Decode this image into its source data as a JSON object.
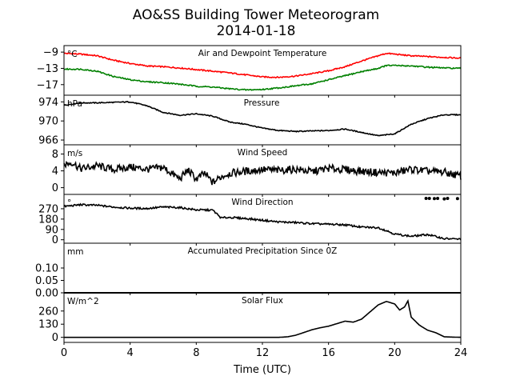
{
  "title": "AO&SS Building Tower Meteorogram",
  "subtitle": "2014-01-18",
  "colors": {
    "temperature": "#ff0000",
    "dewpoint": "#008000",
    "default": "#000000"
  },
  "chart_data": [
    {
      "type": "line",
      "title": "Air and Dewpoint Temperature",
      "ylabel": "°C",
      "ylim": [
        -19.6,
        -7.4
      ],
      "yticks": [
        -9,
        -13,
        -17
      ],
      "ytick_labels": [
        "−9",
        "−13",
        "−17"
      ],
      "x": [
        0,
        1,
        2,
        3,
        4,
        5,
        6,
        7,
        8,
        9,
        10,
        11,
        12,
        13,
        14,
        15,
        16,
        17,
        18,
        19,
        19.5,
        20,
        21,
        22,
        23,
        24
      ],
      "series": [
        {
          "color": "#ff0000",
          "values": [
            -9.3,
            -9.5,
            -9.9,
            -11.0,
            -11.8,
            -12.4,
            -12.6,
            -12.9,
            -13.3,
            -13.7,
            -14.1,
            -14.6,
            -15.1,
            -15.2,
            -14.9,
            -14.3,
            -13.6,
            -12.6,
            -11.2,
            -9.9,
            -9.3,
            -9.5,
            -9.9,
            -10.1,
            -10.3,
            -10.5
          ]
        },
        {
          "color": "#008000",
          "values": [
            -13.2,
            -13.2,
            -13.7,
            -15.0,
            -15.8,
            -16.3,
            -16.5,
            -16.9,
            -17.4,
            -17.6,
            -18.0,
            -18.3,
            -18.2,
            -17.8,
            -17.3,
            -16.8,
            -15.8,
            -14.8,
            -13.8,
            -13.0,
            -12.3,
            -12.3,
            -12.4,
            -12.7,
            -12.9,
            -13.0
          ]
        }
      ]
    },
    {
      "type": "line",
      "title": "Pressure",
      "ylabel": "hPa",
      "ylim": [
        965,
        975.4
      ],
      "yticks": [
        974,
        970,
        966
      ],
      "ytick_labels": [
        "974",
        "970",
        "966"
      ],
      "x": [
        0,
        1,
        2,
        3,
        4,
        5,
        6,
        7,
        8,
        9,
        10,
        11,
        12,
        13,
        14,
        15,
        16,
        17,
        18,
        19,
        20,
        21,
        22,
        23,
        24
      ],
      "series": [
        {
          "color": "#000000",
          "values": [
            973.3,
            973.8,
            973.8,
            973.9,
            974.0,
            973.2,
            971.8,
            971.2,
            971.5,
            971.0,
            969.8,
            969.3,
            968.5,
            968.0,
            967.8,
            967.9,
            968.0,
            968.3,
            967.6,
            966.9,
            967.3,
            969.3,
            970.5,
            971.3,
            971.3
          ]
        }
      ]
    },
    {
      "type": "line",
      "title": "Wind Speed",
      "ylabel": "m/s",
      "ylim": [
        -1.6,
        10.2
      ],
      "yticks": [
        8,
        4,
        0
      ],
      "ytick_labels": [
        "8",
        "4",
        "0"
      ],
      "x": [
        0,
        0.5,
        1,
        2,
        3,
        4,
        5,
        6,
        7,
        7.5,
        8,
        8.5,
        9,
        9.5,
        10,
        11,
        12,
        13,
        14,
        15,
        16,
        17,
        18,
        19,
        20,
        21,
        22,
        23,
        24
      ],
      "series": [
        {
          "color": "#000000",
          "values": [
            5.5,
            6.0,
            4.5,
            5.2,
            4.3,
            4.9,
            4.4,
            4.8,
            2.1,
            4.2,
            2.0,
            3.4,
            1.2,
            2.6,
            3.4,
            3.9,
            4.3,
            4.1,
            4.4,
            3.8,
            4.6,
            4.3,
            3.9,
            3.6,
            3.5,
            4.4,
            3.9,
            3.7,
            2.7
          ]
        }
      ]
    },
    {
      "type": "line",
      "title": "Wind Direction",
      "ylabel": "°",
      "ylim": [
        -30,
        395
      ],
      "yticks": [
        270,
        180,
        90,
        0
      ],
      "ytick_labels": [
        "270",
        "180",
        "90",
        "0"
      ],
      "x": [
        0,
        1,
        2,
        3,
        4,
        5,
        6,
        7,
        8,
        9,
        9.5,
        10,
        11,
        12,
        13,
        14,
        15,
        16,
        17,
        18,
        19,
        19.5,
        20,
        21,
        22,
        23,
        24
      ],
      "series": [
        {
          "color": "#000000",
          "values": [
            290,
            305,
            300,
            285,
            275,
            272,
            285,
            280,
            260,
            258,
            190,
            195,
            185,
            170,
            155,
            150,
            140,
            135,
            130,
            110,
            105,
            80,
            50,
            30,
            45,
            10,
            5
          ]
        }
      ],
      "scatter": [
        {
          "color": "#000000",
          "x": [
            21.9,
            22.1,
            22.4,
            22.6,
            23.0,
            23.2,
            23.8
          ],
          "y": [
            360,
            360,
            358,
            360,
            356,
            360,
            358
          ]
        }
      ]
    },
    {
      "type": "line",
      "title": "Accumulated Precipitation Since 0Z",
      "ylabel": "mm",
      "ylim": [
        0,
        0.2
      ],
      "yticks": [
        0.1,
        0.05,
        0.0
      ],
      "ytick_labels": [
        "0.10",
        "0.05",
        "0.00"
      ],
      "x": [
        0,
        24
      ],
      "series": [
        {
          "color": "#000000",
          "values": [
            0,
            0
          ]
        }
      ]
    },
    {
      "type": "line",
      "title": "Solar Flux",
      "ylabel": "W/m^2",
      "ylim": [
        -50,
        440
      ],
      "yticks": [
        260,
        130,
        0
      ],
      "ytick_labels": [
        "260",
        "130",
        "0"
      ],
      "x": [
        0,
        13,
        13.5,
        14,
        15,
        15.5,
        16,
        16.5,
        17,
        17.5,
        18,
        18.5,
        19,
        19.5,
        20,
        20.3,
        20.6,
        20.8,
        21,
        21.5,
        22,
        22.5,
        23,
        24
      ],
      "series": [
        {
          "color": "#000000",
          "values": [
            0,
            0,
            5,
            20,
            75,
            95,
            110,
            135,
            160,
            150,
            180,
            250,
            320,
            355,
            330,
            270,
            300,
            360,
            200,
            120,
            70,
            45,
            5,
            0
          ]
        }
      ],
      "xlabel": "Time (UTC)",
      "xlim": [
        0,
        24
      ],
      "xticks": [
        0,
        4,
        8,
        12,
        16,
        20,
        24
      ],
      "xtick_labels": [
        "0",
        "4",
        "8",
        "12",
        "16",
        "20",
        "24"
      ]
    }
  ]
}
